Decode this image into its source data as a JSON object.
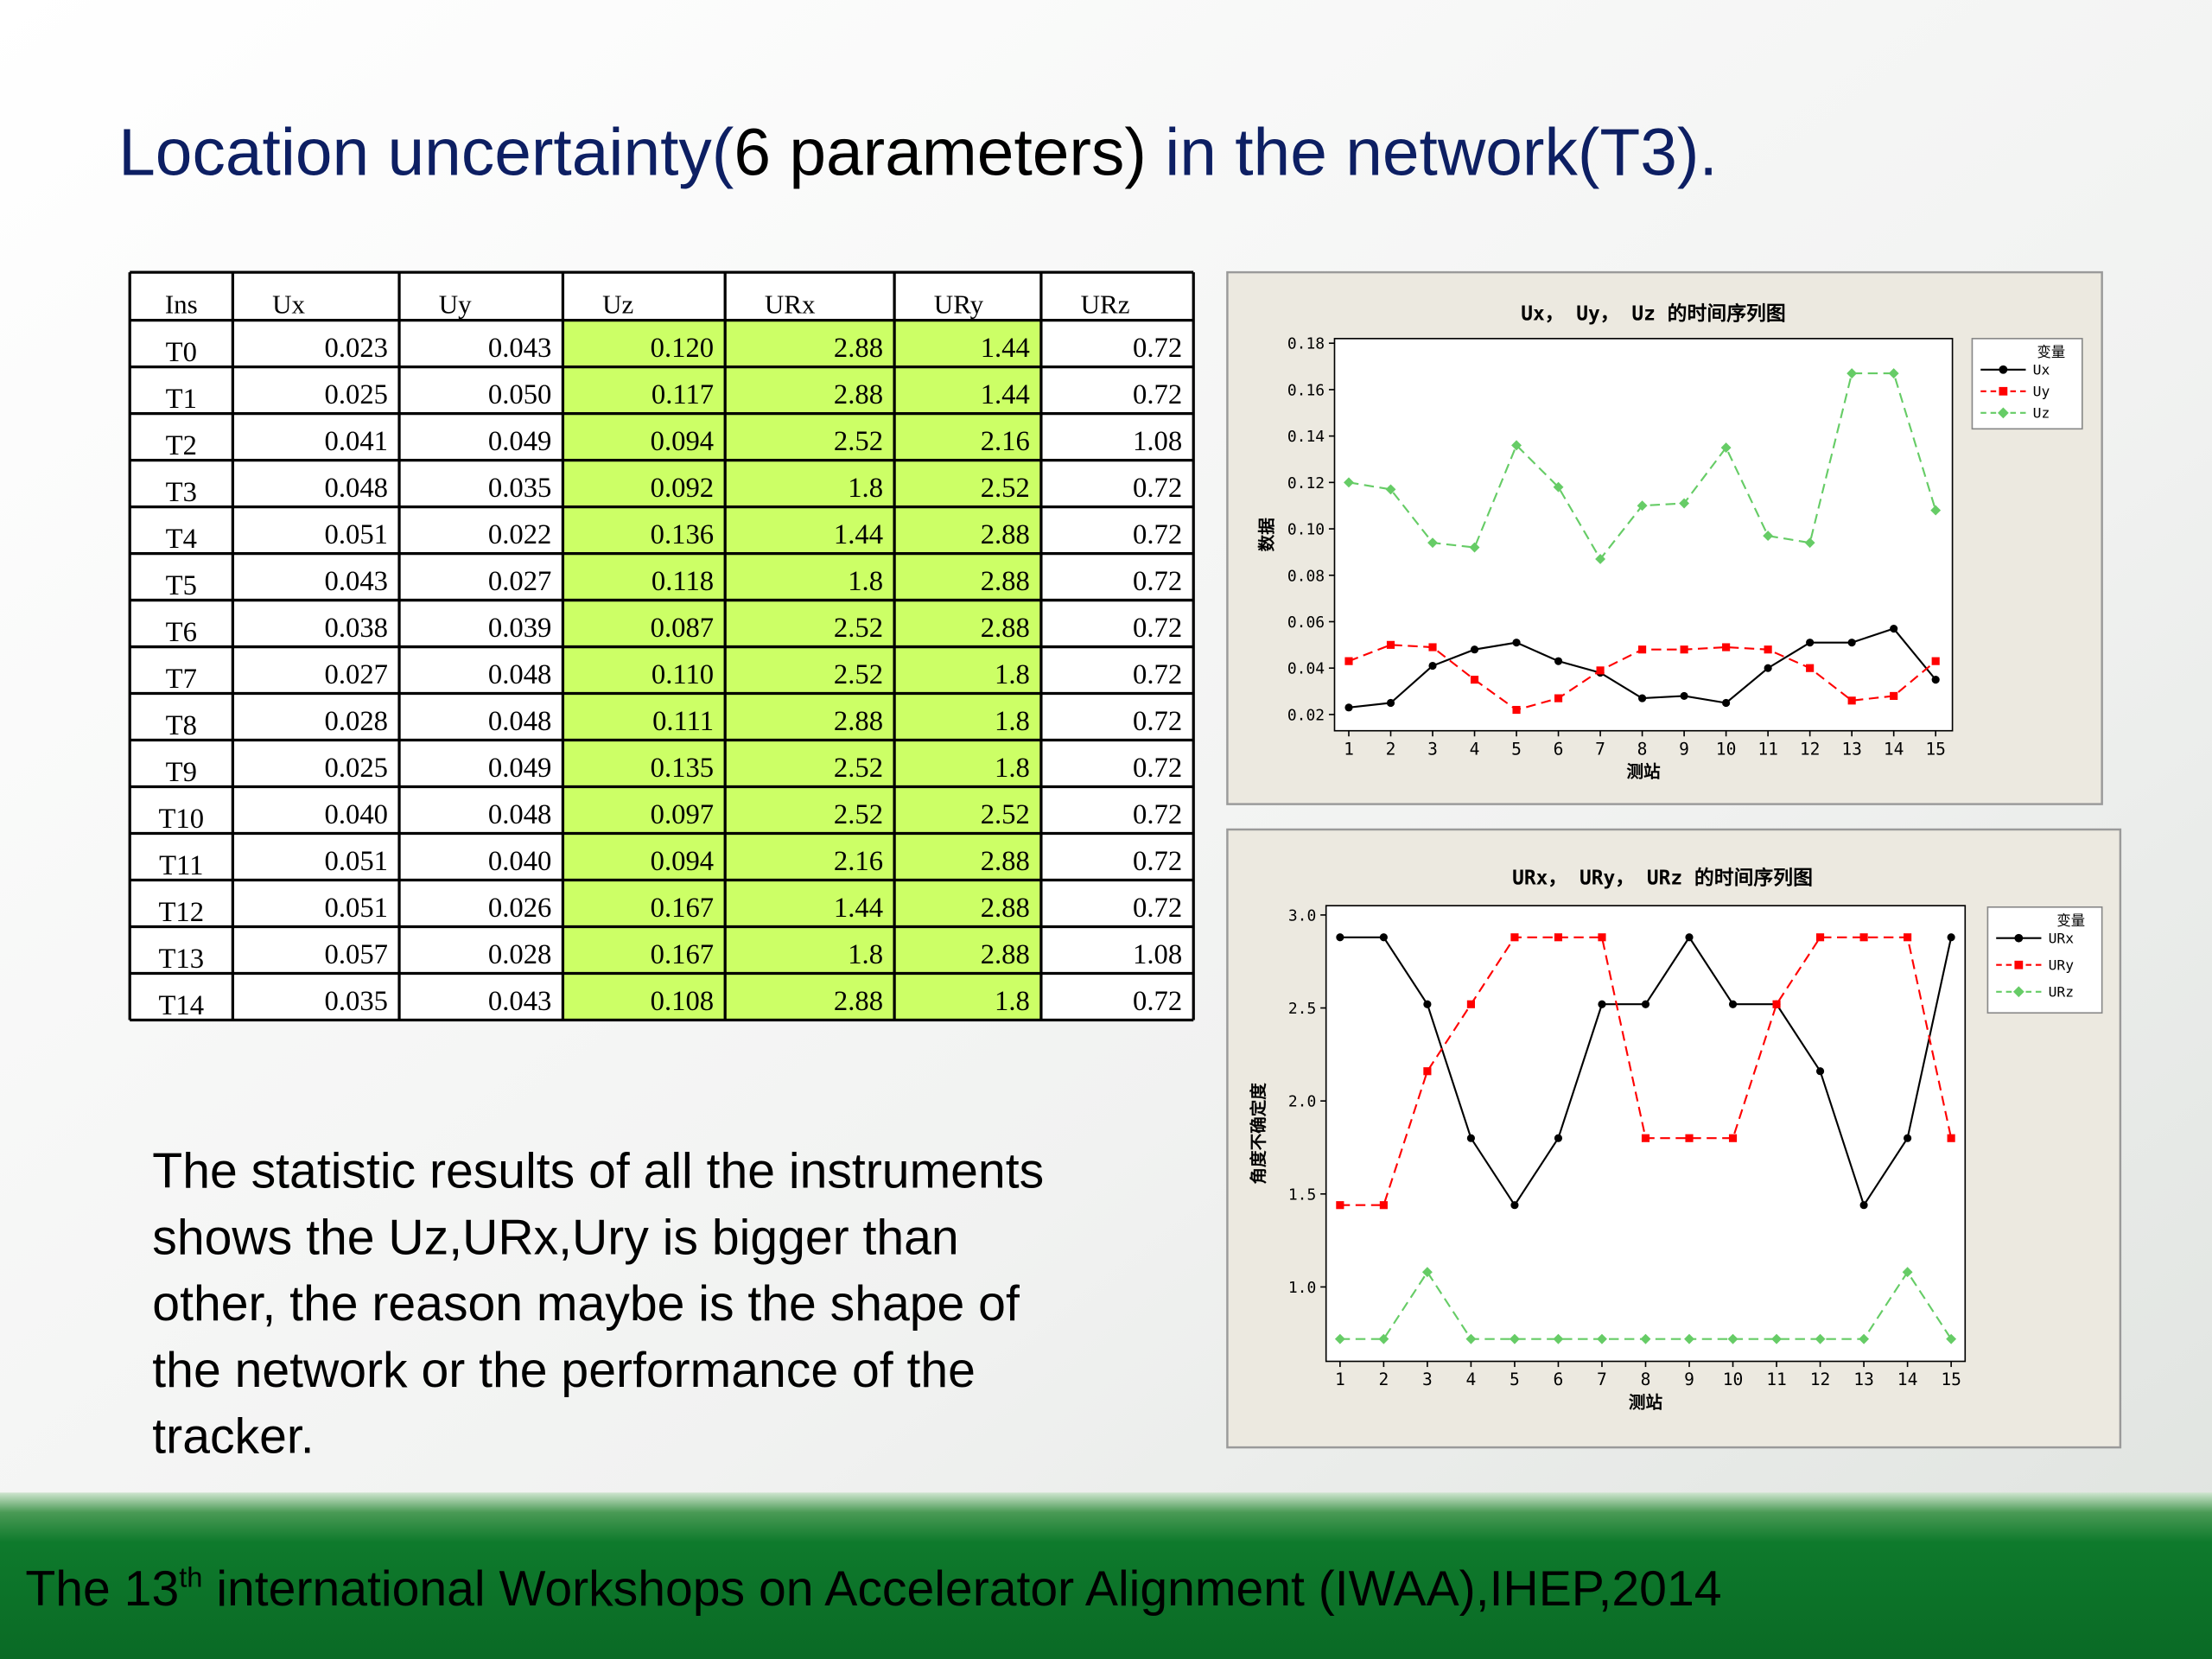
{
  "title": [
    {
      "text": "Location uncertainty(",
      "color": "#0d1f63"
    },
    {
      "text": "6 parameters)",
      "color": "#000000"
    },
    {
      "text": " in the network(T3).",
      "color": "#0d1f63"
    }
  ],
  "table": {
    "header": [
      "Ins",
      "Ux",
      "Uy",
      "Uz",
      "URx",
      "URy",
      "URz"
    ],
    "highlight_color": "#ccff66",
    "highlight_columns": [
      "Uz",
      "URx",
      "URy"
    ],
    "rows": [
      [
        "T0",
        "0.023",
        "0.043",
        "0.120",
        "2.88",
        "1.44",
        "0.72"
      ],
      [
        "T1",
        "0.025",
        "0.050",
        "0.117",
        "2.88",
        "1.44",
        "0.72"
      ],
      [
        "T2",
        "0.041",
        "0.049",
        "0.094",
        "2.52",
        "2.16",
        "1.08"
      ],
      [
        "T3",
        "0.048",
        "0.035",
        "0.092",
        "1.8",
        "2.52",
        "0.72"
      ],
      [
        "T4",
        "0.051",
        "0.022",
        "0.136",
        "1.44",
        "2.88",
        "0.72"
      ],
      [
        "T5",
        "0.043",
        "0.027",
        "0.118",
        "1.8",
        "2.88",
        "0.72"
      ],
      [
        "T6",
        "0.038",
        "0.039",
        "0.087",
        "2.52",
        "2.88",
        "0.72"
      ],
      [
        "T7",
        "0.027",
        "0.048",
        "0.110",
        "2.52",
        "1.8",
        "0.72"
      ],
      [
        "T8",
        "0.028",
        "0.048",
        "0.111",
        "2.88",
        "1.8",
        "0.72"
      ],
      [
        "T9",
        "0.025",
        "0.049",
        "0.135",
        "2.52",
        "1.8",
        "0.72"
      ],
      [
        "T10",
        "0.040",
        "0.048",
        "0.097",
        "2.52",
        "2.52",
        "0.72"
      ],
      [
        "T11",
        "0.051",
        "0.040",
        "0.094",
        "2.16",
        "2.88",
        "0.72"
      ],
      [
        "T12",
        "0.051",
        "0.026",
        "0.167",
        "1.44",
        "2.88",
        "0.72"
      ],
      [
        "T13",
        "0.057",
        "0.028",
        "0.167",
        "1.8",
        "2.88",
        "1.08"
      ],
      [
        "T14",
        "0.035",
        "0.043",
        "0.108",
        "2.88",
        "1.8",
        "0.72"
      ]
    ]
  },
  "paragraph": [
    "The statistic results of all the instruments",
    "shows the Uz,URx,Ury is bigger than",
    "other, the reason maybe is the shape of",
    "the network or the performance  of  the",
    "tracker."
  ],
  "footer": {
    "text": "The 13",
    "sup": "th",
    "rest": " international Workshops on Accelerator Alignment (IWAA),IHEP,2014"
  },
  "chart_data": [
    {
      "type": "line",
      "title": "Ux， Uy， Uz 的时间序列图",
      "x_label": "测站",
      "y_label": "数据",
      "legend_title": "变量",
      "legend": "right",
      "x": [
        1,
        2,
        3,
        4,
        5,
        6,
        7,
        8,
        9,
        10,
        11,
        12,
        13,
        14,
        15
      ],
      "xticks": [
        1,
        2,
        3,
        4,
        5,
        6,
        7,
        8,
        9,
        10,
        11,
        12,
        13,
        14,
        15
      ],
      "xlim": [
        0.66,
        15.4
      ],
      "ylim": [
        0.013,
        0.182
      ],
      "yticks": [
        0.02,
        0.04,
        0.06,
        0.08,
        {
          "value": 0.1,
          "label": "0.10"
        },
        0.12,
        0.14,
        0.16,
        0.18
      ],
      "series": [
        {
          "name": "Ux",
          "color": "#000000",
          "marker": "circle",
          "linestyle": "solid",
          "values": [
            0.023,
            0.025,
            0.041,
            0.048,
            0.051,
            0.043,
            0.038,
            0.027,
            0.028,
            0.025,
            0.04,
            0.051,
            0.051,
            0.057,
            0.035
          ]
        },
        {
          "name": "Uy",
          "color": "#ff0000",
          "marker": "square",
          "linestyle": "dashed",
          "values": [
            0.043,
            0.05,
            0.049,
            0.035,
            0.022,
            0.027,
            0.039,
            0.048,
            0.048,
            0.049,
            0.048,
            0.04,
            0.026,
            0.028,
            0.043
          ]
        },
        {
          "name": "Uz",
          "color": "#66cc66",
          "marker": "diamond",
          "linestyle": "dashed",
          "values": [
            0.12,
            0.117,
            0.094,
            0.092,
            0.136,
            0.118,
            0.087,
            0.11,
            0.111,
            0.135,
            0.097,
            0.094,
            0.167,
            0.167,
            0.108
          ]
        }
      ]
    },
    {
      "type": "line",
      "title": "URx， URy， URz 的时间序列图",
      "x_label": "测站",
      "y_label": "角度不确定度",
      "legend_title": "变量",
      "legend": "right",
      "x": [
        1,
        2,
        3,
        4,
        5,
        6,
        7,
        8,
        9,
        10,
        11,
        12,
        13,
        14,
        15
      ],
      "xticks": [
        1,
        2,
        3,
        4,
        5,
        6,
        7,
        8,
        9,
        10,
        11,
        12,
        13,
        14,
        15
      ],
      "xlim": [
        0.68,
        15.32
      ],
      "ylim": [
        0.6,
        3.05
      ],
      "yticks": [
        {
          "value": 1,
          "label": "1.0"
        },
        1.5,
        {
          "value": 2,
          "label": "2.0"
        },
        2.5,
        {
          "value": 3,
          "label": "3.0"
        }
      ],
      "series": [
        {
          "name": "URx",
          "color": "#000000",
          "marker": "circle",
          "linestyle": "solid",
          "values": [
            2.88,
            2.88,
            2.52,
            1.8,
            1.44,
            1.8,
            2.52,
            2.52,
            2.88,
            2.52,
            2.52,
            2.16,
            1.44,
            1.8,
            2.88
          ]
        },
        {
          "name": "URy",
          "color": "#ff0000",
          "marker": "square",
          "linestyle": "dashed",
          "values": [
            1.44,
            1.44,
            2.16,
            2.52,
            2.88,
            2.88,
            2.88,
            1.8,
            1.8,
            1.8,
            2.52,
            2.88,
            2.88,
            2.88,
            1.8
          ]
        },
        {
          "name": "URz",
          "color": "#66cc66",
          "marker": "diamond",
          "linestyle": "dashed",
          "values": [
            0.72,
            0.72,
            1.08,
            0.72,
            0.72,
            0.72,
            0.72,
            0.72,
            0.72,
            0.72,
            0.72,
            0.72,
            0.72,
            1.08,
            0.72
          ]
        }
      ]
    }
  ]
}
